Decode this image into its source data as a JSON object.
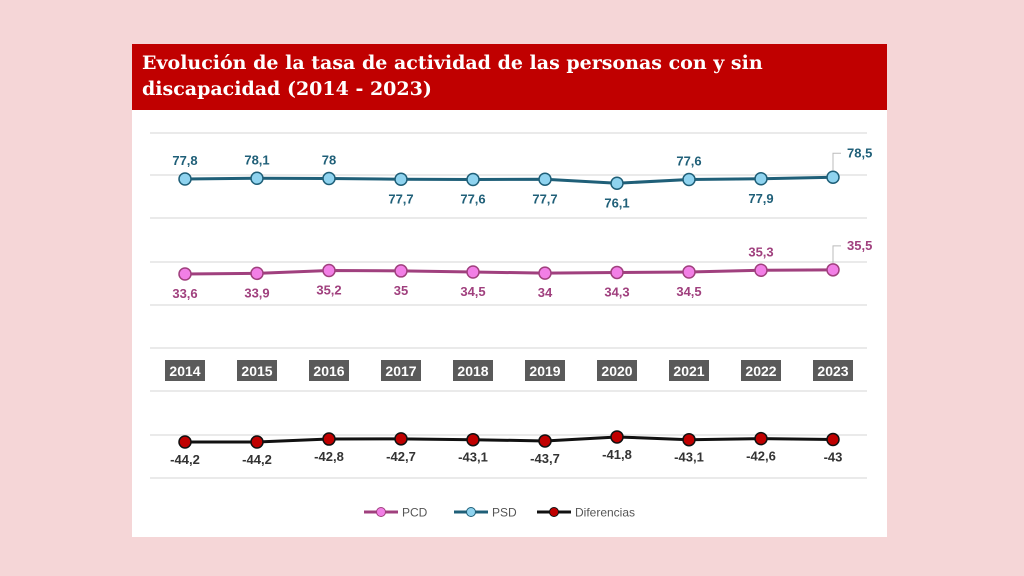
{
  "chart_data": {
    "type": "line",
    "title": "Evolución de la tasa de actividad de las personas con y sin discapacidad (2014 - 2023)",
    "xlabel": "",
    "ylabel": "",
    "categories": [
      "2014",
      "2015",
      "2016",
      "2017",
      "2018",
      "2019",
      "2020",
      "2021",
      "2022",
      "2023"
    ],
    "grid": true,
    "legend_position": "bottom",
    "series": [
      {
        "name": "PSD",
        "line_color": "#1f5f78",
        "marker_color": "#8fd3ef",
        "values": [
          77.8,
          78.1,
          78,
          77.7,
          77.6,
          77.7,
          76.1,
          77.6,
          77.9,
          78.5
        ],
        "labels": [
          "77,8",
          "78,1",
          "78",
          "77,7",
          "77,6",
          "77,7",
          "76,1",
          "77,6",
          "77,9",
          "78,5"
        ],
        "label_color": "#1f5f78"
      },
      {
        "name": "PCD",
        "line_color": "#a0407e",
        "marker_color": "#f27fe6",
        "values": [
          33.6,
          33.9,
          35.2,
          35,
          34.5,
          34,
          34.3,
          34.5,
          35.3,
          35.5
        ],
        "labels": [
          "33,6",
          "33,9",
          "35,2",
          "35",
          "34,5",
          "34",
          "34,3",
          "34,5",
          "35,3",
          "35,5"
        ],
        "label_color": "#a0407e"
      },
      {
        "name": "Diferencias",
        "line_color": "#111111",
        "marker_color": "#c00000",
        "values": [
          -44.2,
          -44.2,
          -42.8,
          -42.7,
          -43.1,
          -43.7,
          -41.8,
          -43.1,
          -42.6,
          -43
        ],
        "labels": [
          "-44,2",
          "-44,2",
          "-42,8",
          "-42,7",
          "-43,1",
          "-43,7",
          "-41,8",
          "-43,1",
          "-42,6",
          "-43"
        ],
        "label_color": "#333333"
      }
    ],
    "legend": [
      "PCD",
      "PSD",
      "Diferencias"
    ]
  }
}
